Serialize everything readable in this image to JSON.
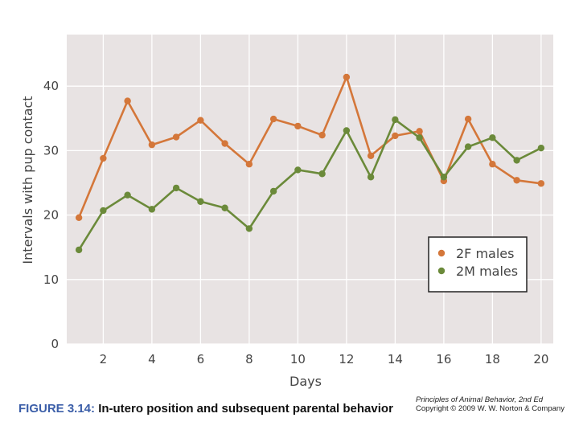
{
  "chart_data": {
    "type": "line",
    "title": "",
    "xlabel": "Days",
    "ylabel": "Intervals with pup contact",
    "xlim": [
      0.5,
      20.5
    ],
    "ylim": [
      0,
      48
    ],
    "x_ticks": [
      2,
      4,
      6,
      8,
      10,
      12,
      14,
      16,
      18,
      20
    ],
    "y_ticks": [
      0,
      10,
      20,
      30,
      40
    ],
    "x": [
      1,
      2,
      3,
      4,
      5,
      6,
      7,
      8,
      9,
      10,
      11,
      12,
      13,
      14,
      15,
      16,
      17,
      18,
      19,
      20
    ],
    "series": [
      {
        "name": "2F males",
        "color": "#d4773a",
        "values": [
          19.6,
          28.8,
          37.7,
          30.9,
          32.1,
          34.7,
          31.1,
          27.9,
          34.9,
          33.8,
          32.4,
          41.4,
          29.2,
          32.3,
          33.0,
          25.3,
          34.9,
          27.9,
          25.4,
          24.9
        ]
      },
      {
        "name": "2M males",
        "color": "#6b8a3a",
        "values": [
          14.6,
          20.7,
          23.1,
          20.9,
          24.2,
          22.1,
          21.1,
          17.9,
          23.7,
          27.0,
          26.4,
          33.1,
          25.9,
          34.8,
          32.0,
          25.9,
          30.6,
          32.0,
          28.5,
          30.4
        ]
      }
    ],
    "legend_position": "bottom-right",
    "grid": true
  },
  "caption": {
    "figure_label": "FIGURE 3.14:",
    "figure_text": " In-utero position and subsequent parental behavior"
  },
  "credit": {
    "book": "Principles of Animal Behavior, 2nd Ed",
    "copyright": "Copyright © 2009 W. W. Norton & Company"
  },
  "colors": {
    "plot_background": "#e8e3e3",
    "grid": "#ffffff"
  }
}
